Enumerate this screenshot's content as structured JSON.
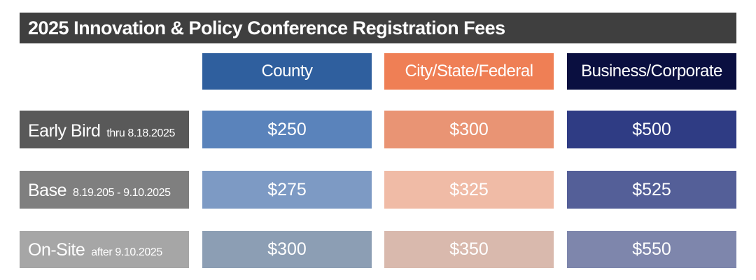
{
  "title": "2025 Innovation & Policy Conference Registration Fees",
  "columns": [
    {
      "label": "County",
      "color": "#2f5f9e"
    },
    {
      "label": "City/State/Federal",
      "color": "#ef7f55"
    },
    {
      "label": "Business/Corporate",
      "color": "#0a0f40"
    }
  ],
  "rows": [
    {
      "tier": "Early Bird",
      "dates": "thru 8.18.2025",
      "label_color": "#595959",
      "prices": [
        "$250",
        "$300",
        "$500"
      ],
      "colors": [
        "#5a83bb",
        "#e99474",
        "#2f3c84"
      ]
    },
    {
      "tier": "Base",
      "dates": "8.19.205 - 9.10.2025",
      "label_color": "#7f7f7f",
      "prices": [
        "$275",
        "$325",
        "$525"
      ],
      "colors": [
        "#7d9ac4",
        "#f0bba6",
        "#545f98"
      ]
    },
    {
      "tier": "On-Site",
      "dates": "after 9.10.2025",
      "label_color": "#a6a6a6",
      "prices": [
        "$300",
        "$350",
        "$550"
      ],
      "colors": [
        "#8c9eb4",
        "#d9b9ad",
        "#7e86ac"
      ]
    }
  ]
}
